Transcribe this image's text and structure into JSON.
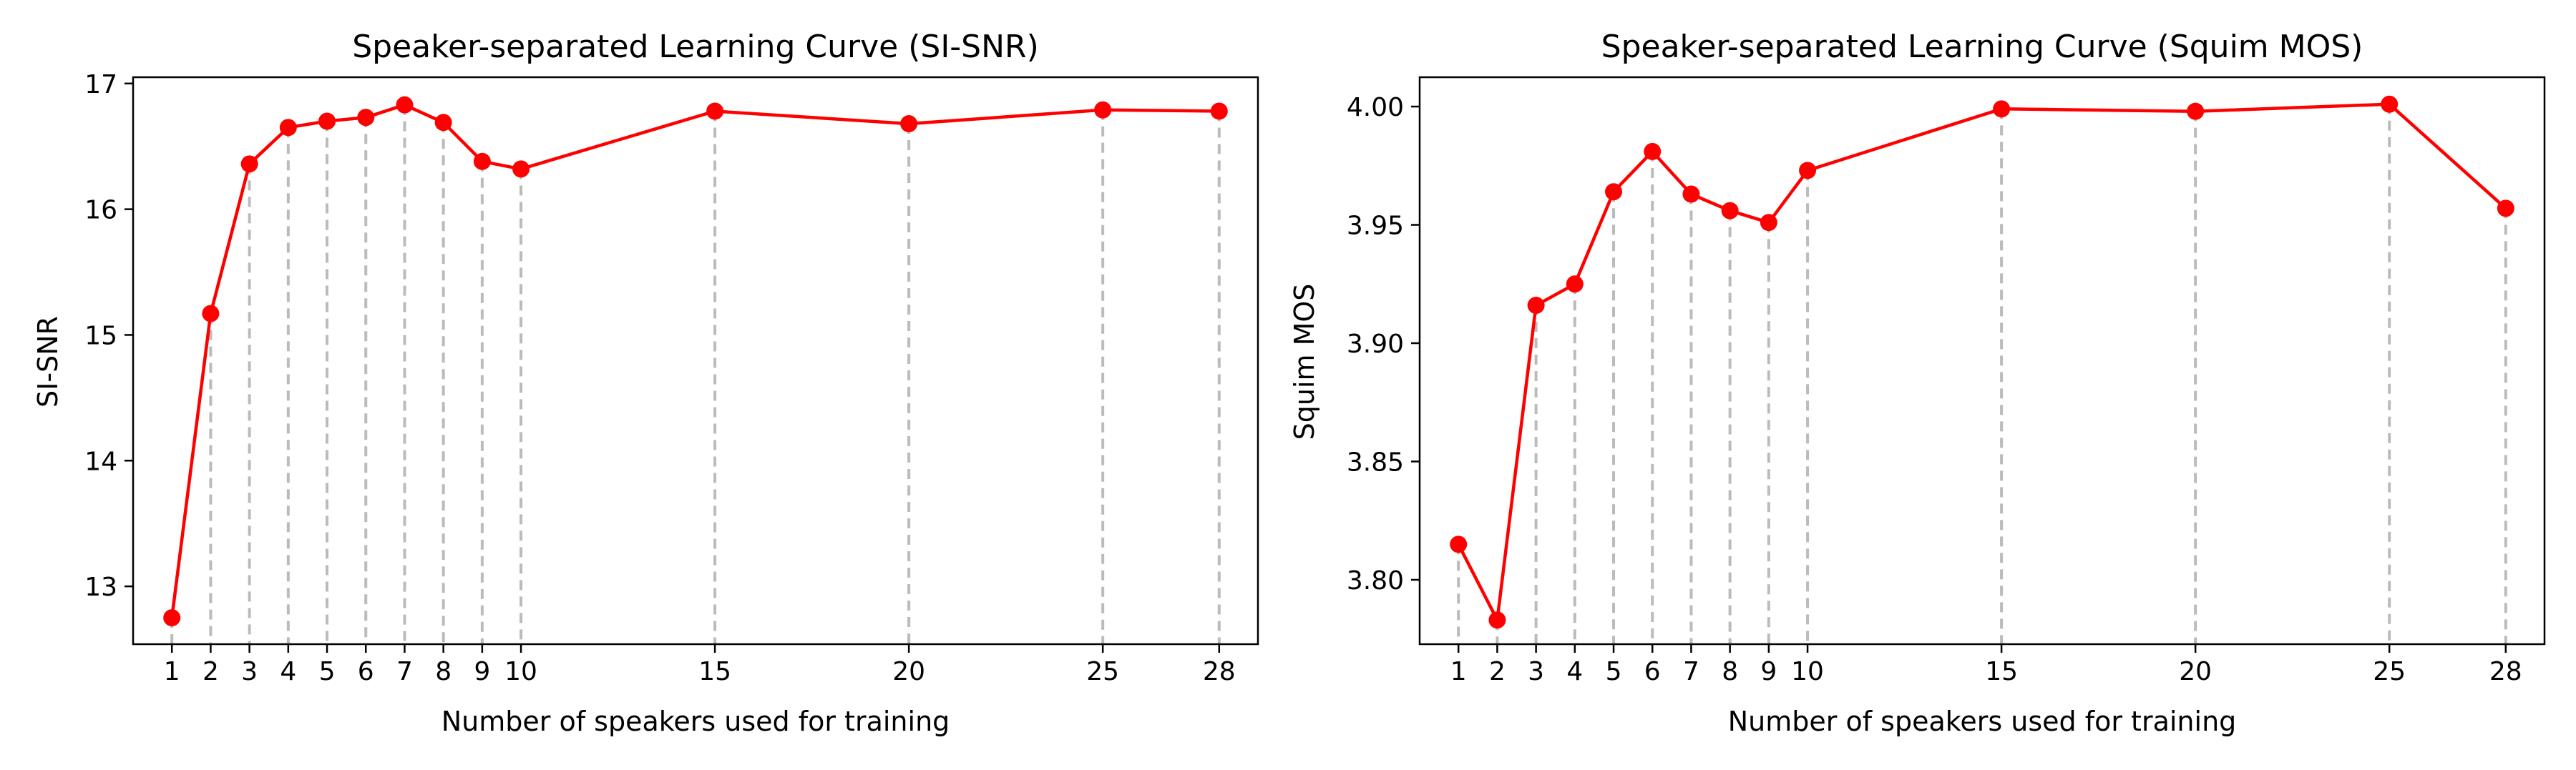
{
  "chart_data": [
    {
      "type": "line",
      "title": "Speaker-separated Learning Curve (SI-SNR)",
      "xlabel": "Number of speakers used for training",
      "ylabel": "SI-SNR",
      "x": [
        1,
        2,
        3,
        4,
        5,
        6,
        7,
        8,
        9,
        10,
        15,
        20,
        25,
        28
      ],
      "values": [
        12.75,
        15.17,
        16.36,
        16.65,
        16.7,
        16.73,
        16.83,
        16.69,
        16.38,
        16.32,
        16.78,
        16.68,
        16.79,
        16.78
      ],
      "xticks": [
        1,
        2,
        3,
        4,
        5,
        6,
        7,
        8,
        9,
        10,
        15,
        20,
        25,
        28
      ],
      "yticks": [
        13,
        14,
        15,
        16,
        17
      ],
      "ytick_labels": [
        "13",
        "14",
        "15",
        "16",
        "17"
      ],
      "xlim": [
        0.0,
        29.0
      ],
      "ylim": [
        12.54,
        17.05
      ],
      "color": "#ff0000",
      "drop_line_color": "#bbbbbb",
      "grid": false
    },
    {
      "type": "line",
      "title": "Speaker-separated Learning Curve (Squim MOS)",
      "xlabel": "Number of speakers used for training",
      "ylabel": "Squim MOS",
      "x": [
        1,
        2,
        3,
        4,
        5,
        6,
        7,
        8,
        9,
        10,
        15,
        20,
        25,
        28
      ],
      "values": [
        3.815,
        3.783,
        3.916,
        3.925,
        3.964,
        3.981,
        3.963,
        3.956,
        3.951,
        3.973,
        3.999,
        3.998,
        4.001,
        3.957
      ],
      "xticks": [
        1,
        2,
        3,
        4,
        5,
        6,
        7,
        8,
        9,
        10,
        15,
        20,
        25,
        28
      ],
      "yticks": [
        3.8,
        3.85,
        3.9,
        3.95,
        4.0
      ],
      "ytick_labels": [
        "3.80",
        "3.85",
        "3.90",
        "3.95",
        "4.00"
      ],
      "xlim": [
        0.0,
        29.0
      ],
      "ylim": [
        3.7728,
        4.0124
      ],
      "color": "#ff0000",
      "drop_line_color": "#bbbbbb",
      "grid": false
    }
  ]
}
